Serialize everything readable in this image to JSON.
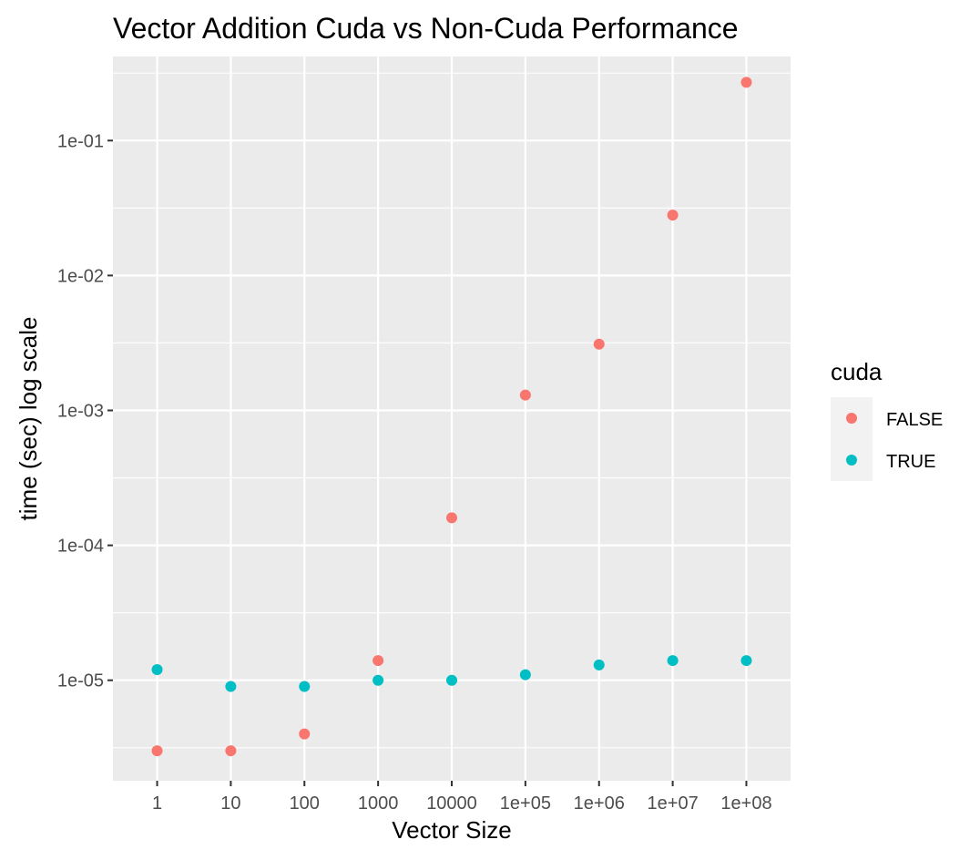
{
  "chart_data": {
    "type": "scatter",
    "title": "Vector Addition Cuda vs Non-Cuda Performance",
    "xlabel": "Vector Size",
    "ylabel": "time (sec) log scale",
    "x_scale": "categorical",
    "y_scale": "log",
    "categories": [
      "1",
      "10",
      "100",
      "1000",
      "10000",
      "1e+05",
      "1e+06",
      "1e+07",
      "1e+08"
    ],
    "y_ticks": [
      {
        "value": 1e-05,
        "label": "1e-05"
      },
      {
        "value": 0.0001,
        "label": "1e-04"
      },
      {
        "value": 0.001,
        "label": "1e-03"
      },
      {
        "value": 0.01,
        "label": "1e-02"
      },
      {
        "value": 0.1,
        "label": "1e-01"
      }
    ],
    "ylim": [
      1.8e-06,
      0.42
    ],
    "grid": true,
    "background": "#ebebeb",
    "legend": {
      "title": "cuda",
      "position": "right"
    },
    "series": [
      {
        "name": "FALSE",
        "color": "#f8766d",
        "values": [
          3e-06,
          3e-06,
          4e-06,
          1.4e-05,
          0.00016,
          0.0013,
          0.0031,
          0.028,
          0.27
        ]
      },
      {
        "name": "TRUE",
        "color": "#00bfc4",
        "values": [
          1.2e-05,
          9e-06,
          9e-06,
          1e-05,
          1e-05,
          1.1e-05,
          1.3e-05,
          1.4e-05,
          1.4e-05
        ]
      }
    ]
  }
}
